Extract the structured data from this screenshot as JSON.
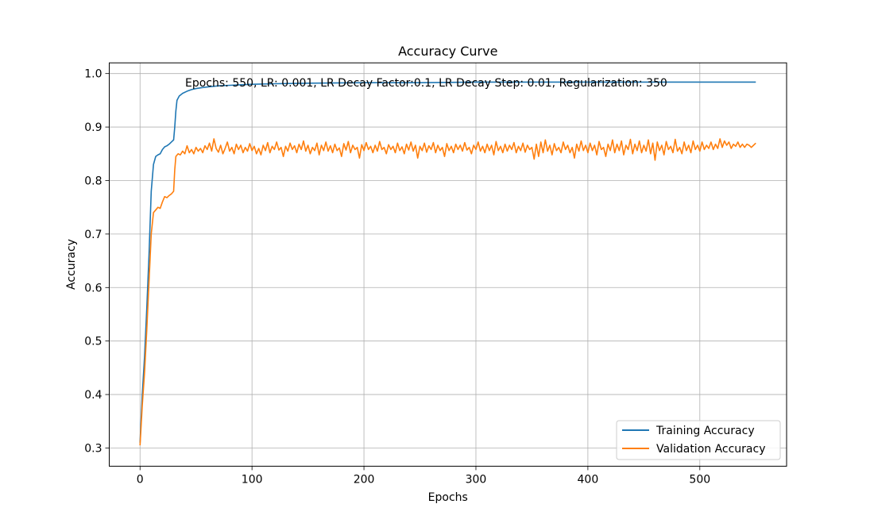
{
  "chart_data": {
    "type": "line",
    "title": "Accuracy Curve",
    "xlabel": "Epochs",
    "ylabel": "Accuracy",
    "annotation": "Epochs: 550, LR: 0.001, LR Decay Factor:0.1, LR Decay Step: 0.01, Regularization: 350",
    "xlim": [
      -27.5,
      577.5
    ],
    "ylim": [
      0.266,
      1.02
    ],
    "x_ticks": [
      0,
      100,
      200,
      300,
      400,
      500
    ],
    "x_tick_labels": [
      "0",
      "100",
      "200",
      "300",
      "400",
      "500"
    ],
    "y_ticks": [
      0.3,
      0.4,
      0.5,
      0.6,
      0.7,
      0.8,
      0.9,
      1.0
    ],
    "y_tick_labels": [
      "0.3",
      "0.4",
      "0.5",
      "0.6",
      "0.7",
      "0.8",
      "0.9",
      "1.0"
    ],
    "grid": true,
    "legend_position": "bottom-right",
    "series": [
      {
        "name": "Training Accuracy",
        "color": "#1f77b4",
        "points": [
          [
            0,
            0.31
          ],
          [
            2,
            0.4
          ],
          [
            4,
            0.47
          ],
          [
            6,
            0.56
          ],
          [
            8,
            0.66
          ],
          [
            10,
            0.78
          ],
          [
            12,
            0.83
          ],
          [
            14,
            0.845
          ],
          [
            16,
            0.848
          ],
          [
            18,
            0.85
          ],
          [
            20,
            0.858
          ],
          [
            22,
            0.863
          ],
          [
            24,
            0.865
          ],
          [
            26,
            0.868
          ],
          [
            28,
            0.872
          ],
          [
            30,
            0.876
          ],
          [
            31,
            0.9
          ],
          [
            32,
            0.93
          ],
          [
            33,
            0.95
          ],
          [
            35,
            0.958
          ],
          [
            38,
            0.963
          ],
          [
            42,
            0.967
          ],
          [
            46,
            0.97
          ],
          [
            50,
            0.972
          ],
          [
            60,
            0.975
          ],
          [
            70,
            0.977
          ],
          [
            80,
            0.978
          ],
          [
            90,
            0.979
          ],
          [
            100,
            0.98
          ],
          [
            120,
            0.981
          ],
          [
            150,
            0.982
          ],
          [
            200,
            0.983
          ],
          [
            250,
            0.983
          ],
          [
            300,
            0.984
          ],
          [
            350,
            0.984
          ],
          [
            400,
            0.984
          ],
          [
            450,
            0.984
          ],
          [
            500,
            0.984
          ],
          [
            520,
            0.984
          ],
          [
            550,
            0.984
          ]
        ]
      },
      {
        "name": "Validation Accuracy",
        "color": "#ff7f0e",
        "points": [
          [
            0,
            0.305
          ],
          [
            2,
            0.38
          ],
          [
            4,
            0.44
          ],
          [
            6,
            0.52
          ],
          [
            8,
            0.61
          ],
          [
            10,
            0.7
          ],
          [
            12,
            0.74
          ],
          [
            14,
            0.745
          ],
          [
            16,
            0.75
          ],
          [
            18,
            0.748
          ],
          [
            20,
            0.76
          ],
          [
            22,
            0.77
          ],
          [
            24,
            0.768
          ],
          [
            26,
            0.772
          ],
          [
            28,
            0.775
          ],
          [
            30,
            0.78
          ],
          [
            31,
            0.82
          ],
          [
            32,
            0.845
          ],
          [
            34,
            0.85
          ],
          [
            36,
            0.848
          ],
          [
            38,
            0.855
          ],
          [
            40,
            0.85
          ],
          [
            42,
            0.865
          ],
          [
            44,
            0.852
          ],
          [
            46,
            0.858
          ],
          [
            48,
            0.85
          ],
          [
            50,
            0.862
          ],
          [
            52,
            0.855
          ],
          [
            54,
            0.86
          ],
          [
            56,
            0.852
          ],
          [
            58,
            0.865
          ],
          [
            60,
            0.858
          ],
          [
            62,
            0.87
          ],
          [
            64,
            0.855
          ],
          [
            66,
            0.878
          ],
          [
            68,
            0.86
          ],
          [
            70,
            0.853
          ],
          [
            72,
            0.866
          ],
          [
            74,
            0.85
          ],
          [
            76,
            0.86
          ],
          [
            78,
            0.872
          ],
          [
            80,
            0.855
          ],
          [
            82,
            0.862
          ],
          [
            84,
            0.85
          ],
          [
            86,
            0.868
          ],
          [
            88,
            0.858
          ],
          [
            90,
            0.866
          ],
          [
            92,
            0.852
          ],
          [
            94,
            0.862
          ],
          [
            96,
            0.855
          ],
          [
            98,
            0.869
          ],
          [
            100,
            0.856
          ],
          [
            102,
            0.864
          ],
          [
            104,
            0.85
          ],
          [
            106,
            0.86
          ],
          [
            108,
            0.848
          ],
          [
            110,
            0.866
          ],
          [
            112,
            0.856
          ],
          [
            114,
            0.871
          ],
          [
            116,
            0.852
          ],
          [
            118,
            0.864
          ],
          [
            120,
            0.858
          ],
          [
            122,
            0.872
          ],
          [
            124,
            0.857
          ],
          [
            126,
            0.862
          ],
          [
            128,
            0.845
          ],
          [
            130,
            0.864
          ],
          [
            132,
            0.855
          ],
          [
            134,
            0.87
          ],
          [
            136,
            0.858
          ],
          [
            138,
            0.865
          ],
          [
            140,
            0.852
          ],
          [
            142,
            0.868
          ],
          [
            144,
            0.858
          ],
          [
            146,
            0.874
          ],
          [
            148,
            0.855
          ],
          [
            150,
            0.866
          ],
          [
            152,
            0.85
          ],
          [
            154,
            0.862
          ],
          [
            156,
            0.856
          ],
          [
            158,
            0.87
          ],
          [
            160,
            0.848
          ],
          [
            162,
            0.866
          ],
          [
            164,
            0.856
          ],
          [
            166,
            0.872
          ],
          [
            168,
            0.855
          ],
          [
            170,
            0.865
          ],
          [
            172,
            0.852
          ],
          [
            174,
            0.868
          ],
          [
            176,
            0.856
          ],
          [
            178,
            0.861
          ],
          [
            180,
            0.845
          ],
          [
            182,
            0.869
          ],
          [
            184,
            0.857
          ],
          [
            186,
            0.873
          ],
          [
            188,
            0.852
          ],
          [
            190,
            0.866
          ],
          [
            192,
            0.858
          ],
          [
            194,
            0.862
          ],
          [
            196,
            0.842
          ],
          [
            198,
            0.867
          ],
          [
            200,
            0.856
          ],
          [
            202,
            0.871
          ],
          [
            204,
            0.858
          ],
          [
            206,
            0.864
          ],
          [
            208,
            0.852
          ],
          [
            210,
            0.866
          ],
          [
            212,
            0.855
          ],
          [
            214,
            0.873
          ],
          [
            216,
            0.858
          ],
          [
            218,
            0.862
          ],
          [
            220,
            0.85
          ],
          [
            222,
            0.867
          ],
          [
            224,
            0.858
          ],
          [
            226,
            0.864
          ],
          [
            228,
            0.852
          ],
          [
            230,
            0.87
          ],
          [
            232,
            0.856
          ],
          [
            234,
            0.863
          ],
          [
            236,
            0.85
          ],
          [
            238,
            0.868
          ],
          [
            240,
            0.857
          ],
          [
            242,
            0.872
          ],
          [
            244,
            0.855
          ],
          [
            246,
            0.866
          ],
          [
            248,
            0.842
          ],
          [
            250,
            0.864
          ],
          [
            252,
            0.856
          ],
          [
            254,
            0.87
          ],
          [
            256,
            0.853
          ],
          [
            258,
            0.865
          ],
          [
            260,
            0.858
          ],
          [
            262,
            0.871
          ],
          [
            264,
            0.852
          ],
          [
            266,
            0.866
          ],
          [
            268,
            0.856
          ],
          [
            270,
            0.862
          ],
          [
            272,
            0.845
          ],
          [
            274,
            0.869
          ],
          [
            276,
            0.856
          ],
          [
            278,
            0.864
          ],
          [
            280,
            0.852
          ],
          [
            282,
            0.868
          ],
          [
            284,
            0.858
          ],
          [
            286,
            0.866
          ],
          [
            288,
            0.855
          ],
          [
            290,
            0.871
          ],
          [
            292,
            0.857
          ],
          [
            294,
            0.862
          ],
          [
            296,
            0.85
          ],
          [
            298,
            0.866
          ],
          [
            300,
            0.858
          ],
          [
            302,
            0.872
          ],
          [
            304,
            0.855
          ],
          [
            306,
            0.864
          ],
          [
            308,
            0.852
          ],
          [
            310,
            0.868
          ],
          [
            312,
            0.856
          ],
          [
            314,
            0.866
          ],
          [
            316,
            0.848
          ],
          [
            318,
            0.873
          ],
          [
            320,
            0.856
          ],
          [
            322,
            0.864
          ],
          [
            324,
            0.852
          ],
          [
            326,
            0.868
          ],
          [
            328,
            0.855
          ],
          [
            330,
            0.866
          ],
          [
            332,
            0.858
          ],
          [
            334,
            0.871
          ],
          [
            336,
            0.852
          ],
          [
            338,
            0.864
          ],
          [
            340,
            0.856
          ],
          [
            342,
            0.87
          ],
          [
            344,
            0.853
          ],
          [
            346,
            0.866
          ],
          [
            348,
            0.858
          ],
          [
            350,
            0.862
          ],
          [
            352,
            0.84
          ],
          [
            354,
            0.868
          ],
          [
            356,
            0.845
          ],
          [
            358,
            0.872
          ],
          [
            360,
            0.852
          ],
          [
            362,
            0.876
          ],
          [
            364,
            0.855
          ],
          [
            366,
            0.866
          ],
          [
            368,
            0.848
          ],
          [
            370,
            0.869
          ],
          [
            372,
            0.856
          ],
          [
            374,
            0.862
          ],
          [
            376,
            0.852
          ],
          [
            378,
            0.872
          ],
          [
            380,
            0.858
          ],
          [
            382,
            0.866
          ],
          [
            384,
            0.852
          ],
          [
            386,
            0.862
          ],
          [
            388,
            0.842
          ],
          [
            390,
            0.868
          ],
          [
            392,
            0.855
          ],
          [
            394,
            0.874
          ],
          [
            396,
            0.856
          ],
          [
            398,
            0.866
          ],
          [
            400,
            0.852
          ],
          [
            402,
            0.87
          ],
          [
            404,
            0.856
          ],
          [
            406,
            0.866
          ],
          [
            408,
            0.848
          ],
          [
            410,
            0.873
          ],
          [
            412,
            0.858
          ],
          [
            414,
            0.862
          ],
          [
            416,
            0.845
          ],
          [
            418,
            0.868
          ],
          [
            420,
            0.856
          ],
          [
            422,
            0.876
          ],
          [
            424,
            0.852
          ],
          [
            426,
            0.868
          ],
          [
            428,
            0.856
          ],
          [
            430,
            0.874
          ],
          [
            432,
            0.848
          ],
          [
            434,
            0.866
          ],
          [
            436,
            0.858
          ],
          [
            438,
            0.877
          ],
          [
            440,
            0.85
          ],
          [
            442,
            0.868
          ],
          [
            444,
            0.856
          ],
          [
            446,
            0.874
          ],
          [
            448,
            0.852
          ],
          [
            450,
            0.866
          ],
          [
            452,
            0.855
          ],
          [
            454,
            0.876
          ],
          [
            456,
            0.85
          ],
          [
            458,
            0.87
          ],
          [
            460,
            0.838
          ],
          [
            462,
            0.872
          ],
          [
            464,
            0.856
          ],
          [
            466,
            0.866
          ],
          [
            468,
            0.848
          ],
          [
            470,
            0.873
          ],
          [
            472,
            0.858
          ],
          [
            474,
            0.864
          ],
          [
            476,
            0.852
          ],
          [
            478,
            0.877
          ],
          [
            480,
            0.855
          ],
          [
            482,
            0.862
          ],
          [
            484,
            0.85
          ],
          [
            486,
            0.872
          ],
          [
            488,
            0.856
          ],
          [
            490,
            0.866
          ],
          [
            492,
            0.852
          ],
          [
            494,
            0.874
          ],
          [
            496,
            0.858
          ],
          [
            498,
            0.866
          ],
          [
            500,
            0.855
          ],
          [
            502,
            0.872
          ],
          [
            504,
            0.858
          ],
          [
            506,
            0.866
          ],
          [
            508,
            0.86
          ],
          [
            510,
            0.872
          ],
          [
            512,
            0.858
          ],
          [
            514,
            0.868
          ],
          [
            516,
            0.86
          ],
          [
            518,
            0.878
          ],
          [
            520,
            0.862
          ],
          [
            522,
            0.874
          ],
          [
            524,
            0.866
          ],
          [
            526,
            0.872
          ],
          [
            528,
            0.86
          ],
          [
            530,
            0.868
          ],
          [
            532,
            0.864
          ],
          [
            534,
            0.872
          ],
          [
            536,
            0.862
          ],
          [
            538,
            0.868
          ],
          [
            540,
            0.862
          ],
          [
            542,
            0.868
          ],
          [
            544,
            0.866
          ],
          [
            546,
            0.862
          ],
          [
            548,
            0.866
          ],
          [
            550,
            0.87
          ]
        ]
      }
    ]
  }
}
